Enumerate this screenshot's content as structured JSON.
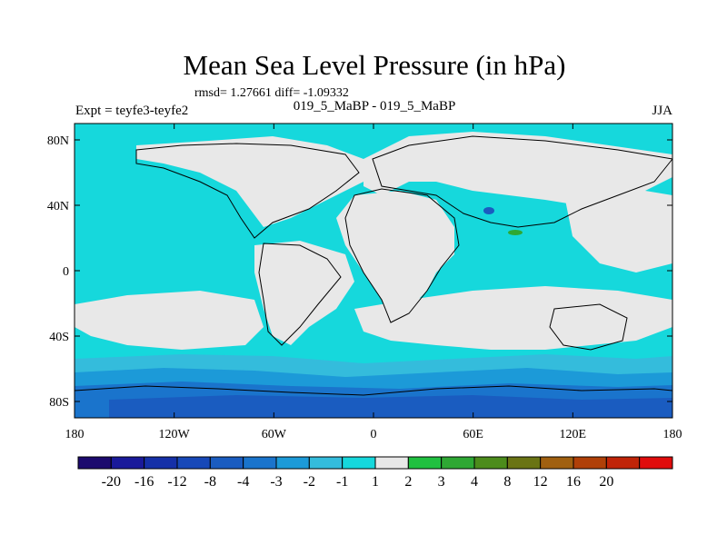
{
  "chart_data": {
    "type": "heatmap",
    "title": "Mean Sea Level Pressure (in hPa)",
    "stats_line": "rmsd= 1.27661 diff= -1.09332",
    "left_label": "Expt = teyfe3-teyfe2",
    "center_label": "019_5_MaBP - 019_5_MaBP",
    "right_label": "JJA",
    "x_ticks": [
      {
        "lon": -180,
        "label": "180"
      },
      {
        "lon": -120,
        "label": "120W"
      },
      {
        "lon": -60,
        "label": "60W"
      },
      {
        "lon": 0,
        "label": "0"
      },
      {
        "lon": 60,
        "label": "60E"
      },
      {
        "lon": 120,
        "label": "120E"
      },
      {
        "lon": 180,
        "label": "180"
      }
    ],
    "y_ticks": [
      {
        "lat": 80,
        "label": "80N"
      },
      {
        "lat": 40,
        "label": "40N"
      },
      {
        "lat": 0,
        "label": "0"
      },
      {
        "lat": -40,
        "label": "40S"
      },
      {
        "lat": -80,
        "label": "80S"
      }
    ],
    "xlim": [
      -180,
      180
    ],
    "ylim": [
      -90,
      90
    ],
    "colorbar": {
      "colors": [
        "#1c0a6e",
        "#1a1a9a",
        "#1530a8",
        "#1748b8",
        "#1a5cc0",
        "#1a74cc",
        "#1c9ad8",
        "#34bcdc",
        "#16d8dc",
        "#e8e8e8",
        "#20c040",
        "#2ea834",
        "#4c8c1c",
        "#6a7414",
        "#a06010",
        "#b04008",
        "#c02408",
        "#e00c0c"
      ],
      "labels": [
        "-20",
        "-16",
        "-12",
        "-8",
        "-4",
        "-3",
        "-2",
        "-1",
        "1",
        "2",
        "3",
        "4",
        "8",
        "12",
        "16",
        "20"
      ]
    }
  }
}
